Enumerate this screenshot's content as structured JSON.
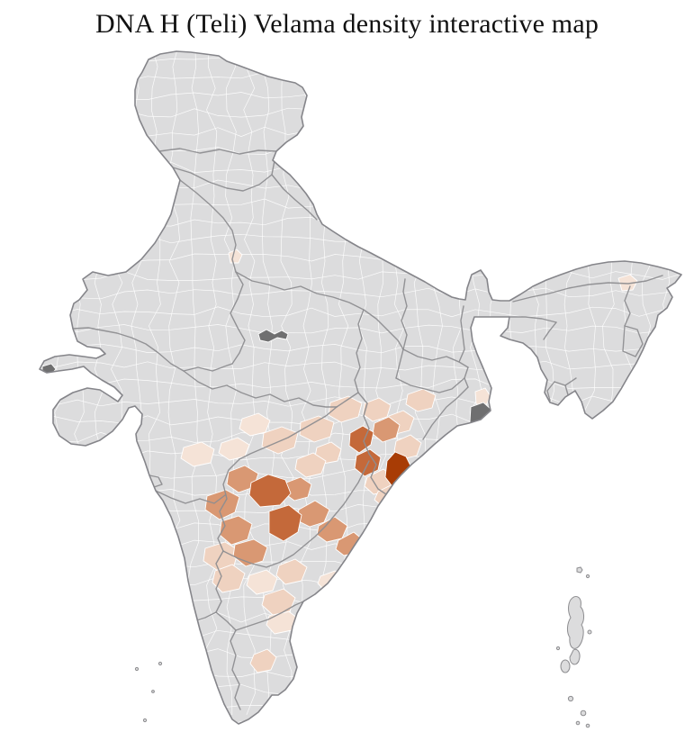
{
  "title": "DNA H (Teli) Velama density interactive map",
  "map": {
    "region": "India",
    "type": "choropleth-district-map",
    "colors": {
      "background": "#ffffff",
      "land": "#dcdcdd",
      "district_border": "#ffffff",
      "state_border": "#8d8d90",
      "national_outline": "#85858a",
      "dark_patch": "#6f6f70",
      "island_fill": "#dcdcdd"
    },
    "density_scale": [
      "#f5e3d7",
      "#efd2c0",
      "#d99873",
      "#c4693a",
      "#a83c05"
    ],
    "density_scale_order": "low-to-high"
  }
}
